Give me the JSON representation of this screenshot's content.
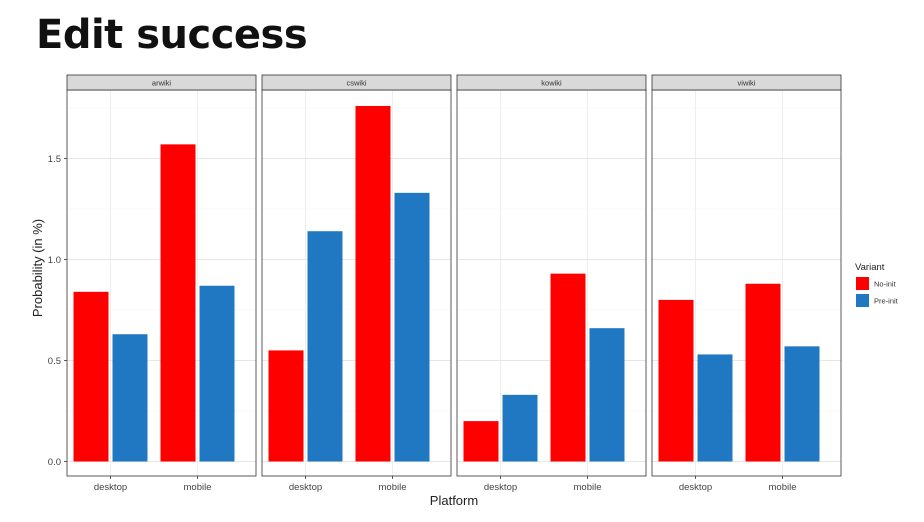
{
  "slide": {
    "title": "Edit success"
  },
  "chart_data": {
    "type": "bar",
    "facets": [
      "arwiki",
      "cswiki",
      "kowiki",
      "viwiki"
    ],
    "categories": [
      "desktop",
      "mobile"
    ],
    "series": [
      {
        "name": "No-init",
        "color": "#ff0000",
        "values": {
          "arwiki": [
            0.84,
            1.57
          ],
          "cswiki": [
            0.55,
            1.76
          ],
          "kowiki": [
            0.2,
            0.93
          ],
          "viwiki": [
            0.8,
            0.88
          ]
        }
      },
      {
        "name": "Pre-init",
        "color": "#1f78c1",
        "values": {
          "arwiki": [
            0.63,
            0.87
          ],
          "cswiki": [
            1.14,
            1.33
          ],
          "kowiki": [
            0.33,
            0.66
          ],
          "viwiki": [
            0.53,
            0.57
          ]
        }
      }
    ],
    "xlabel": "Platform",
    "ylabel": "Probability (in %)",
    "ylim": [
      0,
      1.84
    ],
    "yticks": [
      "0.0",
      "0.5",
      "1.0",
      "1.5"
    ],
    "legend": {
      "title": "Variant",
      "position": "right"
    },
    "grid": true
  }
}
